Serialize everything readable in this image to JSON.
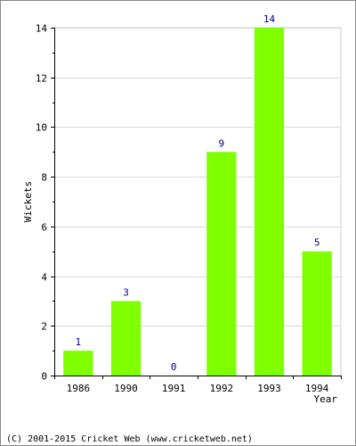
{
  "chart_data": {
    "type": "bar",
    "categories": [
      "1986",
      "1990",
      "1991",
      "1992",
      "1993",
      "1994"
    ],
    "values": [
      1,
      3,
      0,
      9,
      14,
      5
    ],
    "xlabel": "Year",
    "ylabel": "Wickets",
    "ylim": [
      0,
      14
    ],
    "yticks": [
      0,
      2,
      4,
      6,
      8,
      10,
      12,
      14
    ],
    "grid": true,
    "bar_color": "#80ff00",
    "data_label_color": "#000080"
  },
  "footer": {
    "copyright": "(C) 2001-2015 Cricket Web (www.cricketweb.net)"
  }
}
